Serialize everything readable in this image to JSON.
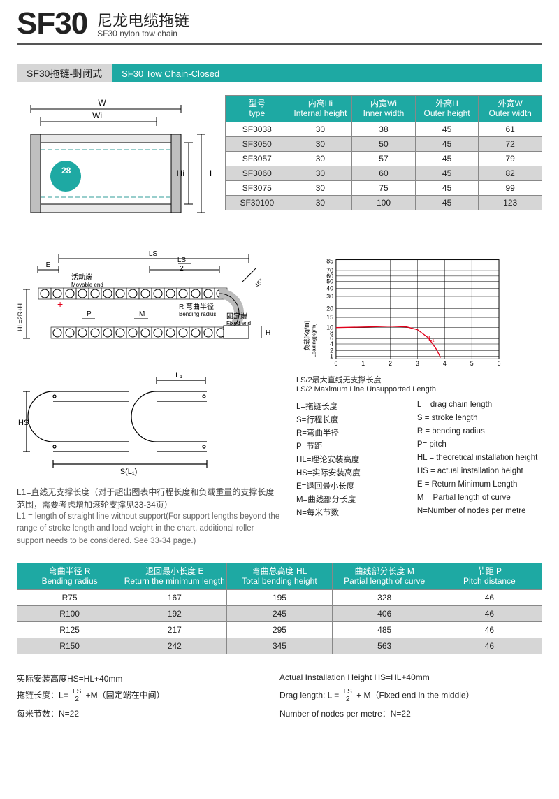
{
  "header": {
    "model": "SF30",
    "title_cn": "尼龙电缆拖链",
    "title_en": "SF30 nylon tow chain"
  },
  "section": {
    "tag_cn": "SF30拖链-封闭式",
    "tag_en": "SF30 Tow Chain-Closed"
  },
  "cross_section": {
    "labels": {
      "W": "W",
      "Wi": "Wi",
      "Hi": "Hi",
      "H": "H",
      "mark": "28"
    },
    "colors": {
      "outline": "#000000",
      "dim": "#000000",
      "fill": "#d0d0d0",
      "center": "#1ea9a3"
    }
  },
  "spec_table": {
    "columns": [
      {
        "cn": "型号",
        "en": "type"
      },
      {
        "cn": "内高Hi",
        "en": "Internal height"
      },
      {
        "cn": "内宽Wi",
        "en": "Inner width"
      },
      {
        "cn": "外高H",
        "en": "Outer height"
      },
      {
        "cn": "外宽W",
        "en": "Outer width"
      }
    ],
    "rows": [
      [
        "SF3038",
        "30",
        "38",
        "45",
        "61"
      ],
      [
        "SF3050",
        "30",
        "50",
        "45",
        "72"
      ],
      [
        "SF3057",
        "30",
        "57",
        "45",
        "79"
      ],
      [
        "SF3060",
        "30",
        "60",
        "45",
        "82"
      ],
      [
        "SF3075",
        "30",
        "75",
        "45",
        "99"
      ],
      [
        "SF30100",
        "30",
        "100",
        "45",
        "123"
      ]
    ],
    "colors": {
      "header_bg": "#1ea9a3",
      "alt_row": "#d6d6d6",
      "border": "#888888"
    }
  },
  "chain_diagram": {
    "labels": {
      "LS": "LS",
      "LS2": "LS",
      "two": "2",
      "E": "E",
      "HL": "HL=2R+H",
      "P": "P",
      "M": "M",
      "fortyfive": "45°",
      "movable_cn": "活动端",
      "movable_en": "Movable end",
      "R_cn": "R 弯曲半径",
      "R_en": "Bending radius",
      "fixed_cn": "固定端",
      "fixed_en": "Fixed end",
      "H": "H"
    },
    "colors": {
      "line": "#000000",
      "plus": "#e2001a"
    }
  },
  "lower_diagram": {
    "labels": {
      "HS": "HS",
      "SL1": "S(L₁)",
      "L1": "L₁"
    }
  },
  "load_chart": {
    "type": "line",
    "ylabel_cn": "负载[Kg/m]",
    "ylabel_en": "Loading[kg/m]",
    "xlabel": "",
    "x_ticks": [
      0,
      1,
      2,
      3,
      4,
      5,
      6
    ],
    "y_ticks": [
      1,
      2,
      4,
      6,
      8,
      10,
      15,
      20,
      30,
      40,
      50,
      60,
      70,
      85
    ],
    "y_positions": [
      158,
      150,
      140,
      132,
      124,
      116,
      101,
      88,
      70,
      58,
      48,
      40,
      32,
      18
    ],
    "xlim": [
      0,
      6
    ],
    "series": {
      "label": "L₁",
      "color": "#e2001a",
      "points": [
        [
          0,
          116
        ],
        [
          1.2,
          115
        ],
        [
          2.0,
          114
        ],
        [
          2.6,
          115
        ],
        [
          3.0,
          119
        ],
        [
          3.4,
          131
        ],
        [
          3.7,
          148
        ],
        [
          3.85,
          160
        ]
      ]
    },
    "background_color": "#ffffff",
    "grid_color": "#000000",
    "caption_cn": "LS/2最大直线无支撑长度",
    "caption_en": "LS/2 Maximum Line Unsupported Length"
  },
  "legend": [
    {
      "cn": "L=拖链长度",
      "en": "L = drag chain length"
    },
    {
      "cn": "S=行程长度",
      "en": "S = stroke length"
    },
    {
      "cn": "R=弯曲半径",
      "en": "R = bending radius"
    },
    {
      "cn": "P=节距",
      "en": "P= pitch"
    },
    {
      "cn": "HL=理论安装高度",
      "en": "HL = theoretical installation height"
    },
    {
      "cn": "HS=实际安装高度",
      "en": "HS = actual installation height"
    },
    {
      "cn": "E=退回最小长度",
      "en": "E = Return Minimum Length"
    },
    {
      "cn": "M=曲线部分长度",
      "en": "M = Partial length of curve"
    },
    {
      "cn": "N=每米节数",
      "en": "N=Number of nodes per metre"
    }
  ],
  "note": {
    "cn": "L1=直线无支撑长度（对于超出图表中行程长度和负载重量的支撑长度范围，需要考虑增加滚轮支撑见33-34页）",
    "en": "L1 = length of straight line without support(For support lengths beyond the range of stroke length and load weight in the chart, additional roller support needs to be considered. See 33-34 page.)"
  },
  "bend_table": {
    "columns": [
      {
        "cn": "弯曲半径 R",
        "en": "Bending radius"
      },
      {
        "cn": "退回最小长度 E",
        "en": "Return the minimum length"
      },
      {
        "cn": "弯曲总高度 HL",
        "en": "Total bending height"
      },
      {
        "cn": "曲线部分长度 M",
        "en": "Partial length of curve"
      },
      {
        "cn": "节距 P",
        "en": "Pitch distance"
      }
    ],
    "rows": [
      [
        "R75",
        "167",
        "195",
        "328",
        "46"
      ],
      [
        "R100",
        "192",
        "245",
        "406",
        "46"
      ],
      [
        "R125",
        "217",
        "295",
        "485",
        "46"
      ],
      [
        "R150",
        "242",
        "345",
        "563",
        "46"
      ]
    ]
  },
  "formulas": {
    "hs_cn": "实际安装高度HS=HL+40mm",
    "hs_en": "Actual Installation Height HS=HL+40mm",
    "drag_cn_pre": "拖链长度：L= ",
    "drag_cn_suf": " +M（固定端在中间）",
    "drag_en_pre": "Drag length: L = ",
    "drag_en_suf": " + M（Fixed end in the middle）",
    "frac_num": "LS",
    "frac_den": "2",
    "nodes_cn": "每米节数：N=22",
    "nodes_en": "Number of nodes per metre：N=22"
  }
}
